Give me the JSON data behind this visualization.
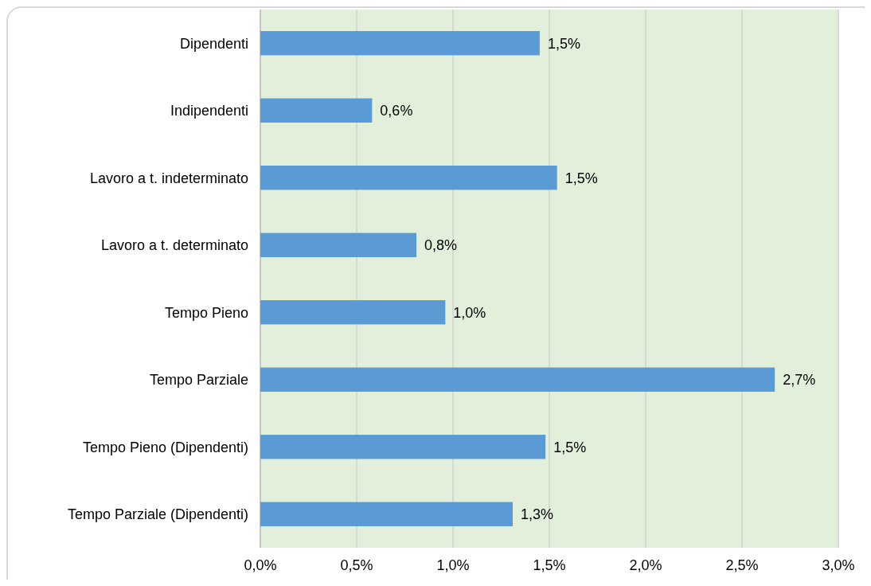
{
  "chart_data": {
    "type": "bar",
    "orientation": "horizontal",
    "categories": [
      "Dipendenti",
      "Indipendenti",
      "Lavoro a t. indeterminato",
      "Lavoro a t. determinato",
      "Tempo Pieno",
      "Tempo Parziale",
      "Tempo Pieno (Dipendenti)",
      "Tempo Parziale (Dipendenti)"
    ],
    "values": [
      1.45,
      0.58,
      1.54,
      0.81,
      0.96,
      2.67,
      1.48,
      1.31
    ],
    "value_labels": [
      "1,5%",
      "0,6%",
      "1,5%",
      "0,8%",
      "1,0%",
      "2,7%",
      "1,5%",
      "1,3%"
    ],
    "color": "#5b9bd5",
    "xlim": [
      0,
      3
    ],
    "xticks": [
      {
        "value": 0,
        "label": "0,0%"
      },
      {
        "value": 0.5,
        "label": "0,5%"
      },
      {
        "value": 1,
        "label": "1,0%"
      },
      {
        "value": 1.5,
        "label": "1,5%"
      },
      {
        "value": 2,
        "label": "2,0%"
      },
      {
        "value": 2.5,
        "label": "2,5%"
      },
      {
        "value": 3,
        "label": "3,0%"
      }
    ],
    "grid": "x"
  }
}
